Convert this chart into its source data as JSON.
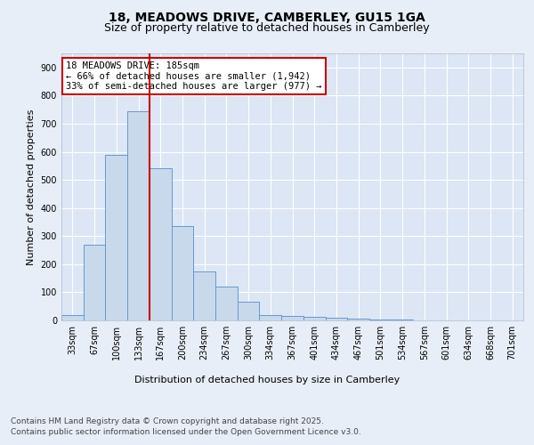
{
  "title1": "18, MEADOWS DRIVE, CAMBERLEY, GU15 1GA",
  "title2": "Size of property relative to detached houses in Camberley",
  "xlabel": "Distribution of detached houses by size in Camberley",
  "ylabel": "Number of detached properties",
  "categories": [
    "33sqm",
    "67sqm",
    "100sqm",
    "133sqm",
    "167sqm",
    "200sqm",
    "234sqm",
    "267sqm",
    "300sqm",
    "334sqm",
    "367sqm",
    "401sqm",
    "434sqm",
    "467sqm",
    "501sqm",
    "534sqm",
    "567sqm",
    "601sqm",
    "634sqm",
    "668sqm",
    "701sqm"
  ],
  "values": [
    20,
    270,
    590,
    745,
    540,
    335,
    175,
    120,
    65,
    20,
    15,
    12,
    10,
    5,
    3,
    2,
    1,
    0,
    1,
    0,
    0
  ],
  "bar_color": "#c9d9ec",
  "bar_edge_color": "#6699cc",
  "vline_pos": 3.5,
  "vline_color": "#cc0000",
  "annotation_text": "18 MEADOWS DRIVE: 185sqm\n← 66% of detached houses are smaller (1,942)\n33% of semi-detached houses are larger (977) →",
  "annotation_box_color": "#cc0000",
  "ylim": [
    0,
    950
  ],
  "yticks": [
    0,
    100,
    200,
    300,
    400,
    500,
    600,
    700,
    800,
    900
  ],
  "background_color": "#e8eef7",
  "plot_bg_color": "#dce6f5",
  "footer_line1": "Contains HM Land Registry data © Crown copyright and database right 2025.",
  "footer_line2": "Contains public sector information licensed under the Open Government Licence v3.0.",
  "title1_fontsize": 10,
  "title2_fontsize": 9,
  "xlabel_fontsize": 8,
  "ylabel_fontsize": 8,
  "tick_fontsize": 7,
  "annotation_fontsize": 7.5,
  "footer_fontsize": 6.5
}
